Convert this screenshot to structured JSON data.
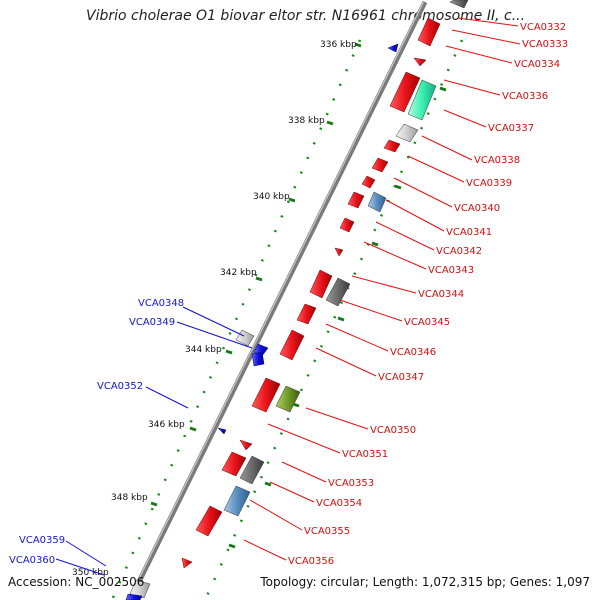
{
  "title": "Vibrio cholerae O1 biovar eltor str. N16961 chromosome II, c...",
  "footer": {
    "accession": "Accession: NC_002506",
    "topology": "Topology: circular; Length: 1,072,315 bp; Genes: 1,097"
  },
  "ticks": [
    "336 kbp",
    "338 kbp",
    "340 kbp",
    "342 kbp",
    "344 kbp",
    "346 kbp",
    "348 kbp",
    "350 kbp"
  ],
  "genes_right": [
    "VCA0332",
    "VCA0333",
    "VCA0334",
    "VCA0336",
    "VCA0337",
    "VCA0338",
    "VCA0339",
    "VCA0340",
    "VCA0341",
    "VCA0342",
    "VCA0343",
    "VCA0344",
    "VCA0345",
    "VCA0346",
    "VCA0347",
    "VCA0350",
    "VCA0351",
    "VCA0353",
    "VCA0354",
    "VCA0355",
    "VCA0356"
  ],
  "genes_left": [
    "VCA0348",
    "VCA0349",
    "VCA0352",
    "VCA0359",
    "VCA0360"
  ],
  "colors": {
    "forward_gene": "#e8141c",
    "reverse_gene": "#1010e0",
    "backbone": "#808080",
    "tick": "#1a7a1a",
    "right_label": "#d01010",
    "left_label": "#1616c8"
  }
}
